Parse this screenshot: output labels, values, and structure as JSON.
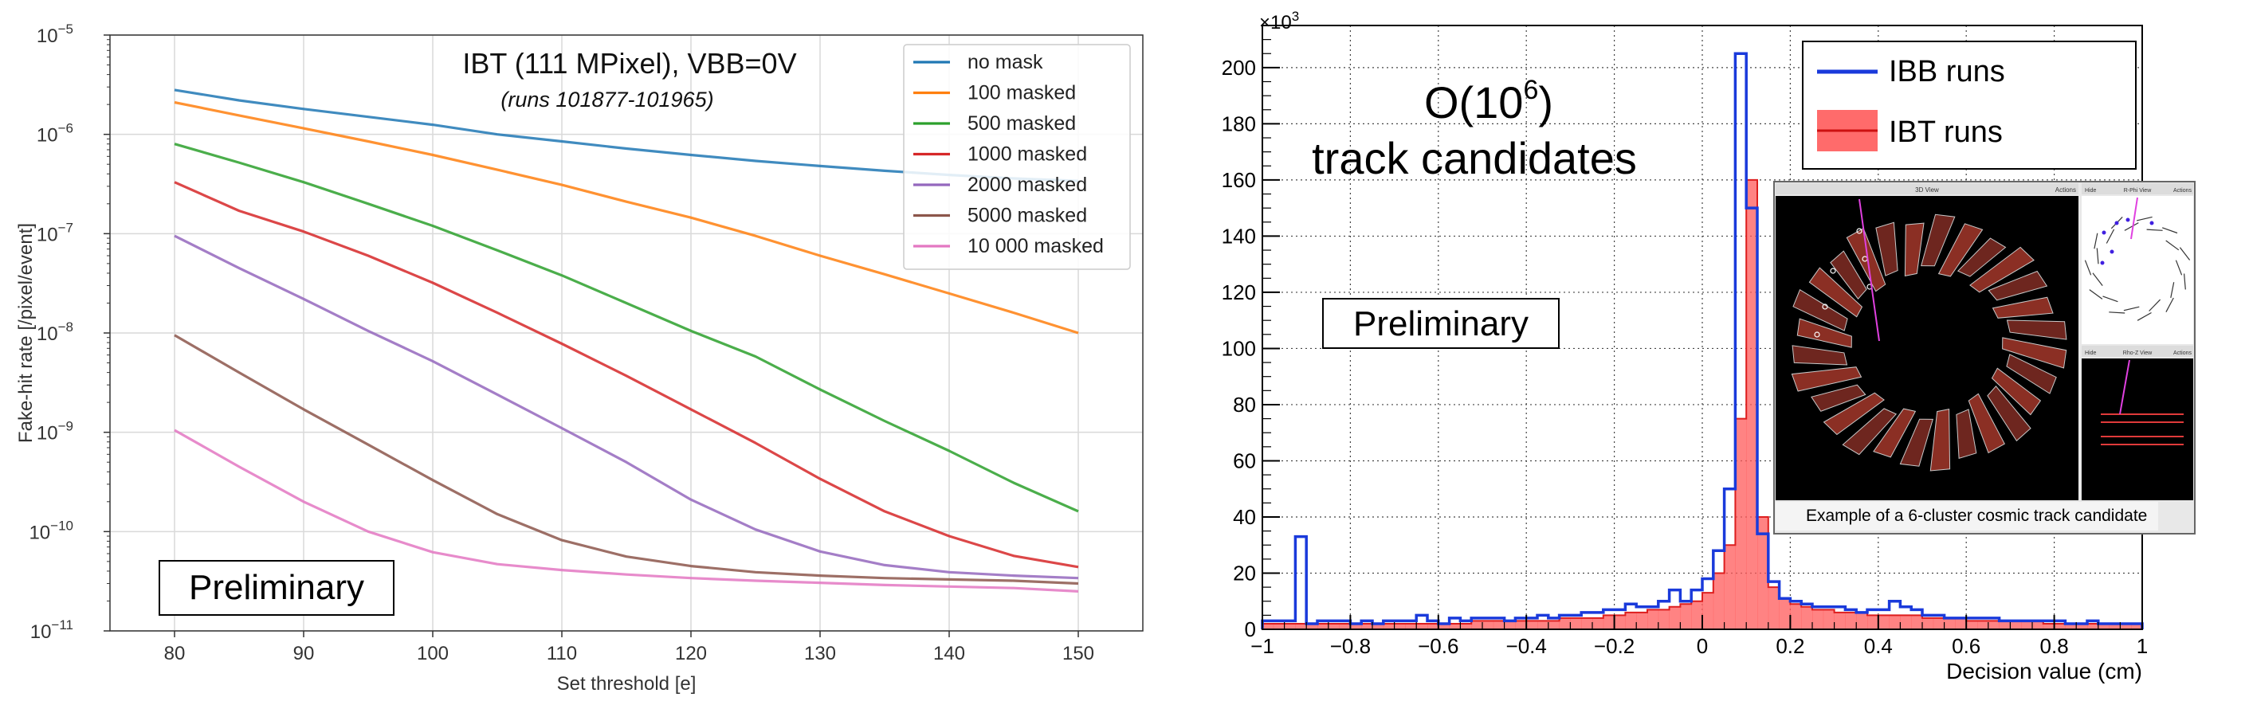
{
  "chart_data": [
    {
      "type": "line",
      "yscale": "log",
      "title": "IBT (111 MPixel), VBB=0V",
      "subtitle": "(runs 101877-101965)",
      "xlabel": "Set threshold [e]",
      "ylabel": "Fake-hit rate [/pixel/event]",
      "xlim": [
        75,
        155
      ],
      "ylim_exp": [
        -11,
        -5
      ],
      "xticks": [
        80,
        90,
        100,
        110,
        120,
        130,
        140,
        150
      ],
      "yticks": [
        {
          "exp": -11,
          "label": "10",
          "sup": "−11"
        },
        {
          "exp": -10,
          "label": "10",
          "sup": "−10"
        },
        {
          "exp": -9,
          "label": "10",
          "sup": "−9"
        },
        {
          "exp": -8,
          "label": "10",
          "sup": "−8"
        },
        {
          "exp": -7,
          "label": "10",
          "sup": "−7"
        },
        {
          "exp": -6,
          "label": "10",
          "sup": "−6"
        },
        {
          "exp": -5,
          "label": "10",
          "sup": "−5"
        }
      ],
      "grid": true,
      "legend_position": "top-right",
      "annotation": "Preliminary",
      "x": [
        80,
        85,
        90,
        95,
        100,
        105,
        110,
        115,
        120,
        125,
        130,
        135,
        140,
        145,
        150
      ],
      "series": [
        {
          "name": "no mask",
          "color": "#1f77b4",
          "values": [
            2.8e-06,
            2.2e-06,
            1.8e-06,
            1.5e-06,
            1.25e-06,
            1e-06,
            8.5e-07,
            7.2e-07,
            6.2e-07,
            5.4e-07,
            4.8e-07,
            4.3e-07,
            3.9e-07,
            3.6e-07,
            3.4e-07
          ]
        },
        {
          "name": "100 masked",
          "color": "#ff7f0e",
          "values": [
            2.1e-06,
            1.55e-06,
            1.15e-06,
            8.5e-07,
            6.2e-07,
            4.4e-07,
            3.1e-07,
            2.1e-07,
            1.45e-07,
            9.5e-08,
            6e-08,
            3.9e-08,
            2.5e-08,
            1.6e-08,
            1e-08
          ]
        },
        {
          "name": "500 masked",
          "color": "#2ca02c",
          "values": [
            8e-07,
            5.2e-07,
            3.3e-07,
            2e-07,
            1.2e-07,
            6.8e-08,
            3.8e-08,
            2e-08,
            1.05e-08,
            5.8e-09,
            2.7e-09,
            1.3e-09,
            6.5e-10,
            3.1e-10,
            1.6e-10
          ]
        },
        {
          "name": "1000 masked",
          "color": "#d62728",
          "values": [
            3.3e-07,
            1.7e-07,
            1.05e-07,
            6e-08,
            3.2e-08,
            1.6e-08,
            7.8e-09,
            3.7e-09,
            1.7e-09,
            7.8e-10,
            3.4e-10,
            1.6e-10,
            9e-11,
            5.7e-11,
            4.4e-11
          ]
        },
        {
          "name": "2000 masked",
          "color": "#9467bd",
          "values": [
            9.5e-08,
            4.5e-08,
            2.2e-08,
            1.05e-08,
            5.2e-09,
            2.4e-09,
            1.1e-09,
            5e-10,
            2.1e-10,
            1.05e-10,
            6.3e-11,
            4.6e-11,
            3.9e-11,
            3.6e-11,
            3.4e-11
          ]
        },
        {
          "name": "5000 masked",
          "color": "#8c564b",
          "values": [
            9.5e-09,
            4e-09,
            1.7e-09,
            7.5e-10,
            3.3e-10,
            1.5e-10,
            8.2e-11,
            5.6e-11,
            4.5e-11,
            3.9e-11,
            3.6e-11,
            3.4e-11,
            3.3e-11,
            3.2e-11,
            3e-11
          ]
        },
        {
          "name": "10 000 masked",
          "color": "#e377c2",
          "values": [
            1.05e-09,
            4.5e-10,
            2e-10,
            1e-10,
            6.2e-11,
            4.7e-11,
            4.1e-11,
            3.7e-11,
            3.4e-11,
            3.2e-11,
            3.05e-11,
            2.9e-11,
            2.8e-11,
            2.7e-11,
            2.5e-11
          ]
        }
      ]
    },
    {
      "type": "histogram",
      "xlabel": "Decision value (cm)",
      "ylabel": "",
      "multiplier": "×10",
      "multiplier_exp": "3",
      "xlim": [
        -1,
        1
      ],
      "ylim": [
        0,
        215
      ],
      "bins": 80,
      "xticks": [
        {
          "value": -1,
          "label": "−1"
        },
        {
          "value": -0.8,
          "label": "−0.8"
        },
        {
          "value": -0.6,
          "label": "−0.6"
        },
        {
          "value": -0.4,
          "label": "−0.4"
        },
        {
          "value": -0.2,
          "label": "−0.2"
        },
        {
          "value": 0,
          "label": "0"
        },
        {
          "value": 0.2,
          "label": "0.2"
        },
        {
          "value": 0.4,
          "label": "0.4"
        },
        {
          "value": 0.6,
          "label": "0.6"
        },
        {
          "value": 0.8,
          "label": "0.8"
        },
        {
          "value": 1,
          "label": "1"
        }
      ],
      "yticks": [
        0,
        20,
        40,
        60,
        80,
        100,
        120,
        140,
        160,
        180,
        200
      ],
      "grid": "dotted",
      "legend_position": "top-right",
      "headline_line1": "O(10",
      "headline_sup": "6",
      "headline_close": ")",
      "headline_line2": "track candidates",
      "annotation": "Preliminary",
      "series": [
        {
          "name": "IBB runs",
          "style": "step-outline",
          "color": "#1a3adb",
          "values": [
            3,
            3,
            3,
            33,
            2,
            3,
            3,
            3,
            2,
            3,
            2,
            3,
            3,
            3,
            5,
            3,
            2,
            4,
            3,
            4,
            4,
            4,
            3,
            4,
            4,
            5,
            4,
            5,
            5,
            6,
            6,
            7,
            7,
            9,
            8,
            8,
            10,
            14,
            10,
            14,
            18,
            28,
            50,
            205,
            150,
            34,
            17,
            11,
            10,
            9,
            8,
            8,
            8,
            7,
            6,
            7,
            7,
            10,
            8,
            7,
            5,
            5,
            4,
            4,
            4,
            4,
            4,
            3,
            3,
            3,
            3,
            3,
            3,
            2,
            2,
            3,
            2,
            2,
            2,
            2
          ]
        },
        {
          "name": "IBT runs",
          "style": "filled",
          "color": "#ff5a5a",
          "values": [
            2,
            2,
            2,
            2,
            2,
            2,
            2,
            2,
            2,
            2,
            2,
            2,
            2,
            2,
            2,
            2,
            2,
            2,
            2,
            3,
            3,
            3,
            3,
            3,
            3,
            3,
            3,
            4,
            4,
            4,
            4,
            5,
            5,
            6,
            6,
            7,
            7,
            8,
            9,
            10,
            13,
            20,
            30,
            75,
            160,
            40,
            15,
            11,
            9,
            8,
            7,
            7,
            6,
            6,
            6,
            5,
            5,
            5,
            5,
            5,
            4,
            4,
            4,
            4,
            3,
            3,
            3,
            3,
            3,
            3,
            3,
            2,
            2,
            2,
            2,
            2,
            2,
            2,
            2,
            2
          ]
        }
      ],
      "inset": {
        "caption": "Example of a 6-cluster cosmic track candidate",
        "panels": [
          {
            "title": "3D View",
            "action": "Actions",
            "left": "Hide"
          },
          {
            "title": "R-Phi View",
            "action": "Actions",
            "left": "Hide"
          },
          {
            "title": "Rho-Z View",
            "action": "Actions",
            "left": "Hide"
          }
        ]
      }
    }
  ]
}
